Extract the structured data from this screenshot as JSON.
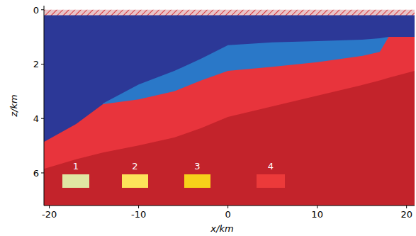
{
  "chart_data": {
    "type": "area",
    "x_label": "x/km",
    "y_label": "z/km",
    "xlim": [
      -20.6,
      20.9
    ],
    "xticks": [
      -20,
      -10,
      0,
      10,
      20
    ],
    "ylim": [
      -0.15,
      7.2
    ],
    "yticks": [
      0,
      2,
      4,
      6
    ],
    "x": [
      -20.6,
      -17,
      -14,
      -10,
      -6,
      -3,
      0,
      5,
      10,
      15,
      17,
      18,
      20.9
    ],
    "series": [
      {
        "color": "#e8c4c8",
        "values": [
          0,
          0,
          0,
          0,
          0,
          0,
          0,
          0,
          0,
          0,
          0,
          0,
          0
        ]
      },
      {
        "color": "#2c3897",
        "values": [
          0.2,
          0.2,
          0.2,
          0.2,
          0.2,
          0.2,
          0.2,
          0.2,
          0.2,
          0.2,
          0.2,
          0.2,
          0.2
        ]
      },
      {
        "color": "#2a78c8",
        "values": [
          null,
          null,
          3.45,
          2.75,
          2.25,
          1.8,
          1.3,
          1.2,
          1.15,
          1.1,
          1.05,
          1.0,
          1.0
        ]
      },
      {
        "color": "#e8343c",
        "values": [
          4.86,
          4.2,
          3.47,
          3.3,
          3.0,
          2.6,
          2.25,
          2.1,
          1.93,
          1.7,
          1.55,
          1.0,
          1.0
        ]
      },
      {
        "color": "#c3232b",
        "values": [
          5.85,
          5.5,
          5.25,
          4.99,
          4.7,
          4.35,
          3.94,
          3.55,
          3.16,
          2.77,
          2.6,
          2.5,
          2.25
        ]
      }
    ],
    "annotations": [
      {
        "text": "1",
        "color": "#e0e6a3"
      },
      {
        "text": "2",
        "color": "#fde35a"
      },
      {
        "text": "3",
        "color": "#f7d11a"
      },
      {
        "text": "4",
        "color": "#ec3a3a"
      }
    ]
  }
}
